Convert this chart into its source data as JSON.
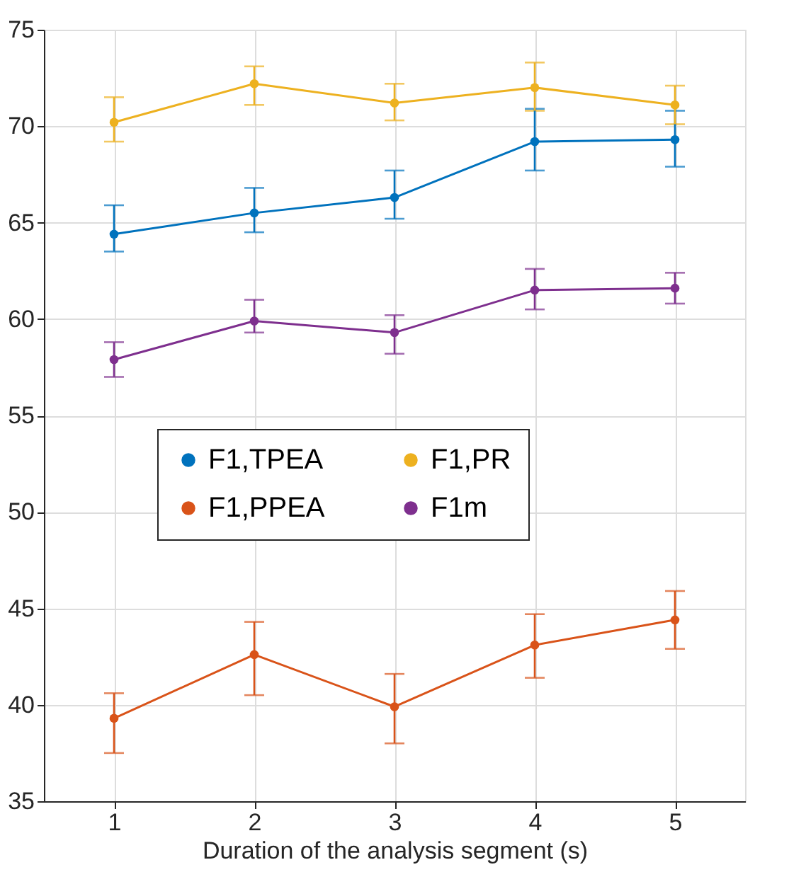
{
  "chart_data": {
    "type": "line",
    "xlabel": "Duration of the analysis segment (s)",
    "x": [
      1,
      2,
      3,
      4,
      5
    ],
    "xlim": [
      0.5,
      5.5
    ],
    "xticks": [
      1,
      2,
      3,
      4,
      5
    ],
    "ylim": [
      35,
      75
    ],
    "yticks": [
      35,
      40,
      45,
      50,
      55,
      60,
      65,
      70,
      75
    ],
    "grid": true,
    "legend": "center",
    "marker": "circle",
    "line_style": "solid",
    "series": [
      {
        "name": "F1,TPEA",
        "color": "#0072bd",
        "values": [
          64.4,
          65.5,
          66.3,
          69.2,
          69.3
        ],
        "errors": [
          [
            63.5,
            65.9
          ],
          [
            64.5,
            66.8
          ],
          [
            65.2,
            67.7
          ],
          [
            67.7,
            70.9
          ],
          [
            67.9,
            70.8
          ]
        ]
      },
      {
        "name": "F1,PPEA",
        "color": "#d95319",
        "values": [
          39.3,
          42.6,
          39.9,
          43.1,
          44.4
        ],
        "errors": [
          [
            37.5,
            40.6
          ],
          [
            40.5,
            44.3
          ],
          [
            38.0,
            41.6
          ],
          [
            41.4,
            44.7
          ],
          [
            42.9,
            45.9
          ]
        ]
      },
      {
        "name": "F1,PR",
        "color": "#edb120",
        "values": [
          70.2,
          72.2,
          71.2,
          72.0,
          71.1
        ],
        "errors": [
          [
            69.2,
            71.5
          ],
          [
            71.1,
            73.1
          ],
          [
            70.3,
            72.2
          ],
          [
            70.8,
            73.3
          ],
          [
            70.1,
            72.1
          ]
        ]
      },
      {
        "name": "F1m",
        "color": "#7e2f8e",
        "values": [
          57.9,
          59.9,
          59.3,
          61.5,
          61.6
        ],
        "errors": [
          [
            57.0,
            58.8
          ],
          [
            59.3,
            61.0
          ],
          [
            58.2,
            60.2
          ],
          [
            60.5,
            62.6
          ],
          [
            60.8,
            62.4
          ]
        ]
      }
    ]
  }
}
